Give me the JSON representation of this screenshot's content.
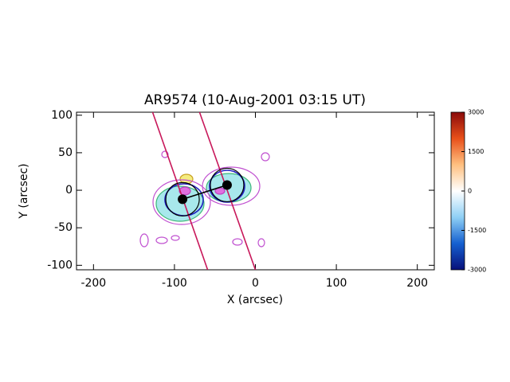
{
  "chart_data": {
    "type": "scatter",
    "title": "AR9574 (10-Aug-2001 03:15 UT)",
    "xlabel": "X (arcsec)",
    "ylabel": "Y (arcsec)",
    "xlim": [
      -221,
      221
    ],
    "ylim": [
      -106,
      104
    ],
    "xticks": [
      -200,
      -100,
      0,
      100,
      200
    ],
    "yticks": [
      -100,
      -50,
      0,
      50,
      100
    ],
    "x": [
      -90,
      -35
    ],
    "values": [
      -12,
      7
    ],
    "color": "#000000",
    "lines": {
      "color": "#c8185a",
      "x": [
        [
          -127,
          -59
        ],
        [
          -69,
          0
        ]
      ],
      "y": [
        [
          104,
          -106
        ],
        [
          104,
          -106
        ]
      ]
    },
    "colorbar": {
      "lim": [
        -3000,
        3000
      ],
      "ticks": [
        -3000,
        -1500,
        0,
        1500,
        3000
      ],
      "colors": [
        "#08107a",
        "#1560d0",
        "#8fd0f5",
        "#ffffff",
        "#ffc080",
        "#e8501a",
        "#8a0a0a"
      ]
    }
  }
}
